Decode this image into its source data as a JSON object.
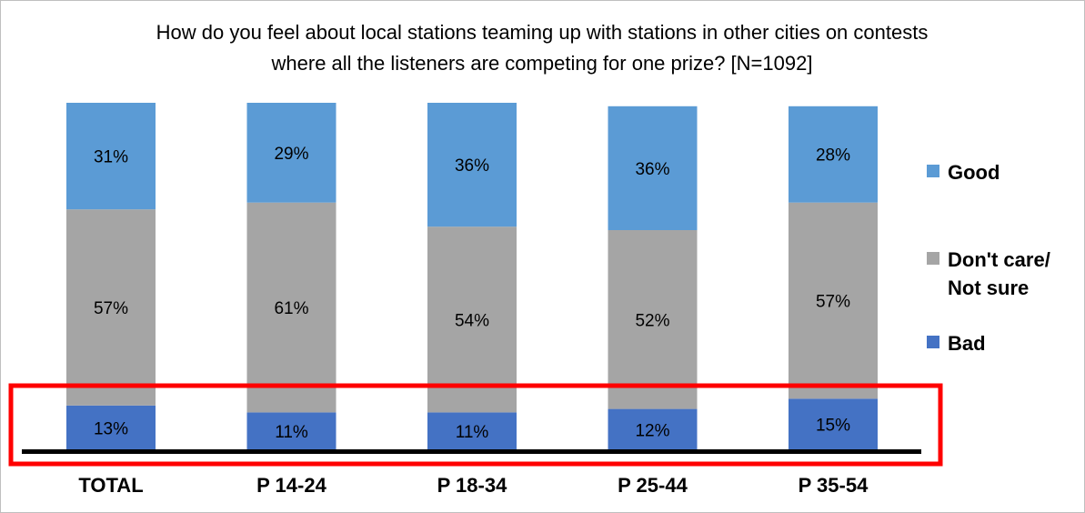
{
  "chart_data": {
    "type": "bar",
    "stacked": true,
    "title_lines": [
      "How do you feel about local stations teaming up with stations in other cities on contests",
      "where all the listeners are competing for one prize? [N=1092]"
    ],
    "categories": [
      "TOTAL",
      "P 14-24",
      "P 18-34",
      "P 25-44",
      "P 35-54"
    ],
    "series": [
      {
        "name": "Bad",
        "values": [
          13,
          11,
          11,
          12,
          15
        ],
        "labels": [
          "13%",
          "11%",
          "11%",
          "12%",
          "15%"
        ],
        "color": "#4472c4"
      },
      {
        "name": "Don't care/ Not sure",
        "legend_lines": [
          "Don't care/",
          "Not sure"
        ],
        "values": [
          57,
          61,
          54,
          52,
          57
        ],
        "labels": [
          "57%",
          "61%",
          "54%",
          "52%",
          "57%"
        ],
        "color": "#a5a5a5"
      },
      {
        "name": "Good",
        "values": [
          31,
          29,
          36,
          36,
          28
        ],
        "labels": [
          "31%",
          "29%",
          "36%",
          "36%",
          "28%"
        ],
        "color": "#5b9bd5"
      }
    ],
    "legend_order": [
      "Good",
      "Don't care/ Not sure",
      "Bad"
    ],
    "legend_position": "right",
    "ylim": [
      0,
      101
    ],
    "grid": false,
    "highlight": {
      "target": "Bad",
      "color": "#ff0000"
    }
  }
}
